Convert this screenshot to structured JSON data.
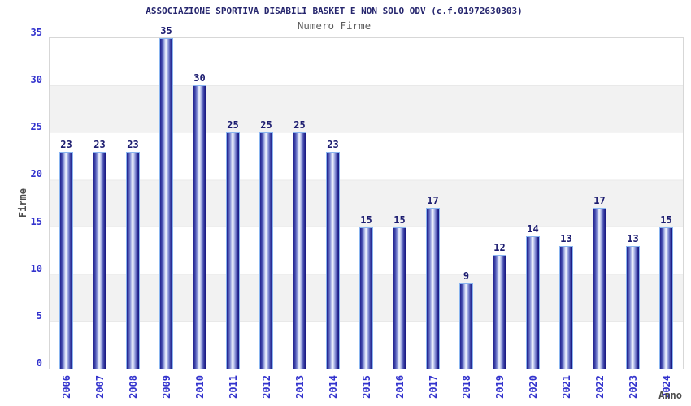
{
  "header": {
    "title": "ASSOCIAZIONE SPORTIVA DISABILI BASKET E NON SOLO ODV (c.f.01972630303)",
    "subtitle": "Numero Firme"
  },
  "axes": {
    "y_label": "Firme",
    "x_label": "Anno",
    "y_ticks": [
      0,
      5,
      10,
      15,
      20,
      25,
      30,
      35
    ]
  },
  "colors": {
    "title_text": "#26266e",
    "subtitle_text": "#5c5c5c",
    "tick_text": "#3232cd",
    "axis_title_text": "#4d4d4d",
    "value_label_text": "#1c1c70",
    "bar_dark": "#23238f",
    "bar_highlight": "#f0f3fd",
    "bar_outline": "#8ab5f0",
    "band_gray": "#f2f2f2",
    "plot_border": "#d7d7d7"
  },
  "chart_data": {
    "type": "bar",
    "title": "ASSOCIAZIONE SPORTIVA DISABILI BASKET E NON SOLO ODV (c.f.01972630303)",
    "subtitle": "Numero Firme",
    "categories": [
      "2006",
      "2007",
      "2008",
      "2009",
      "2010",
      "2011",
      "2012",
      "2013",
      "2014",
      "2015",
      "2016",
      "2017",
      "2018",
      "2019",
      "2020",
      "2021",
      "2022",
      "2023",
      "2024"
    ],
    "values": [
      23,
      23,
      23,
      35,
      30,
      25,
      25,
      25,
      23,
      15,
      15,
      17,
      9,
      12,
      14,
      13,
      17,
      13,
      15
    ],
    "xlabel": "Anno",
    "ylabel": "Firme",
    "ylim": [
      0,
      35
    ],
    "ytick_step": 5,
    "grid": "horizontal alternating bands every 5 units (white / light gray)",
    "legend": null,
    "bar_labels_shown": true,
    "x_tick_rotation": -90
  }
}
